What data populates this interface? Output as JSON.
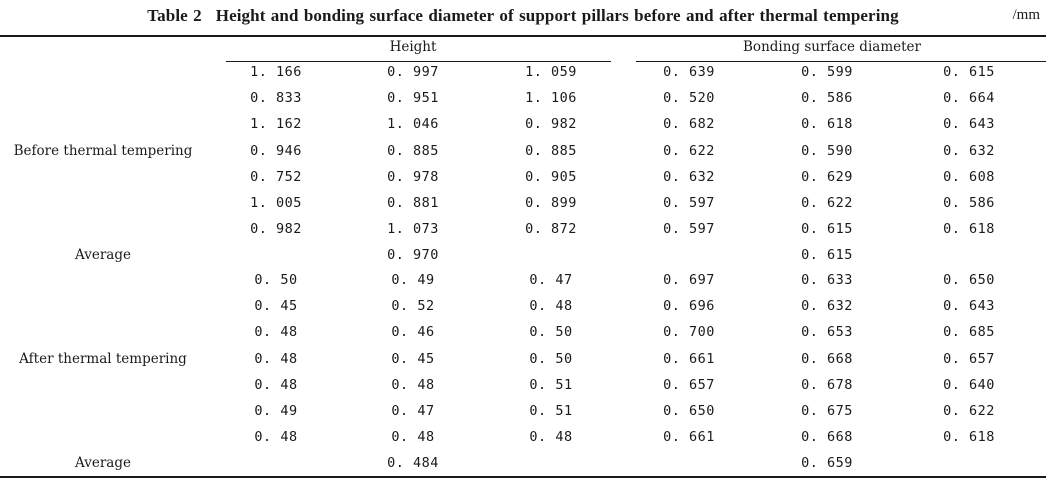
{
  "caption": {
    "label": "Table 2",
    "title": "Height and bonding surface diameter of support pillars before and after thermal tempering",
    "unit": "/mm"
  },
  "headers": {
    "height": "Height",
    "bonding": "Bonding surface diameter"
  },
  "groups": [
    {
      "label": "Before thermal tempering",
      "rows": [
        [
          "1. 166",
          "0. 997",
          "1. 059",
          "0. 639",
          "0. 599",
          "0. 615"
        ],
        [
          "0. 833",
          "0. 951",
          "1. 106",
          "0. 520",
          "0. 586",
          "0. 664"
        ],
        [
          "1. 162",
          "1. 046",
          "0. 982",
          "0. 682",
          "0. 618",
          "0. 643"
        ],
        [
          "0. 946",
          "0. 885",
          "0. 885",
          "0. 622",
          "0. 590",
          "0. 632"
        ],
        [
          "0. 752",
          "0. 978",
          "0. 905",
          "0. 632",
          "0. 629",
          "0. 608"
        ],
        [
          "1. 005",
          "0. 881",
          "0. 899",
          "0. 597",
          "0. 622",
          "0. 586"
        ],
        [
          "0. 982",
          "1. 073",
          "0. 872",
          "0. 597",
          "0. 615",
          "0. 618"
        ]
      ],
      "average": {
        "label": "Average",
        "height": "0. 970",
        "bonding": "0. 615"
      }
    },
    {
      "label": "After thermal tempering",
      "rows": [
        [
          "0. 50",
          "0. 49",
          "0. 47",
          "0. 697",
          "0. 633",
          "0. 650"
        ],
        [
          "0. 45",
          "0. 52",
          "0. 48",
          "0. 696",
          "0. 632",
          "0. 643"
        ],
        [
          "0. 48",
          "0. 46",
          "0. 50",
          "0. 700",
          "0. 653",
          "0. 685"
        ],
        [
          "0. 48",
          "0. 45",
          "0. 50",
          "0. 661",
          "0. 668",
          "0. 657"
        ],
        [
          "0. 48",
          "0. 48",
          "0. 51",
          "0. 657",
          "0. 678",
          "0. 640"
        ],
        [
          "0. 49",
          "0. 47",
          "0. 51",
          "0. 650",
          "0. 675",
          "0. 622"
        ],
        [
          "0. 48",
          "0. 48",
          "0. 48",
          "0. 661",
          "0. 668",
          "0. 618"
        ]
      ],
      "average": {
        "label": "Average",
        "height": "0. 484",
        "bonding": "0. 659"
      }
    }
  ]
}
